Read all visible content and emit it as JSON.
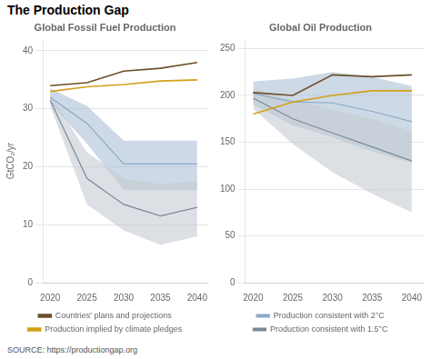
{
  "title": "The Production Gap",
  "annotations": [
    "SOURCE: https://productiongap.org"
  ],
  "chart_data": [
    {
      "type": "line",
      "subtitle": "Global Fossil Fuel Production",
      "ylabel": "GtCO₂/yr",
      "x": [
        2020,
        2025,
        2030,
        2035,
        2040
      ],
      "xlim": [
        2019.0,
        2041.5
      ],
      "xticks": [
        2020,
        2025,
        2030,
        2035,
        2040
      ],
      "ylim": [
        0,
        42
      ],
      "yticks": [
        0,
        10,
        20,
        30,
        40
      ],
      "grid": "y",
      "legend": "bottom",
      "series": [
        {
          "name": "Countries' plans and projections",
          "color": "#6B4F2A",
          "values": [
            34.0,
            34.5,
            36.5,
            37.0,
            38.0
          ]
        },
        {
          "name": "Production implied by climate pledges",
          "color": "#D4A017",
          "values": [
            33.0,
            33.8,
            34.2,
            34.8,
            35.0
          ]
        },
        {
          "color": "#8AAAC8",
          "band_color": "#ABBFD6",
          "values": [
            32.0,
            27.5,
            20.5,
            20.5,
            20.5
          ],
          "upper": [
            33.5,
            30.5,
            24.5,
            24.5,
            24.5
          ],
          "lower": [
            31.0,
            24.0,
            16.0,
            16.0,
            16.0
          ]
        },
        {
          "color": "#7A8A99",
          "band_color": "#C5CBD2",
          "values": [
            31.5,
            18.0,
            13.5,
            11.5,
            13.0
          ],
          "upper": [
            32.5,
            22.5,
            18.0,
            17.0,
            17.5
          ],
          "lower": [
            30.5,
            13.5,
            9.0,
            6.5,
            8.0
          ]
        }
      ]
    },
    {
      "type": "line",
      "subtitle": "Global Oil Production",
      "x": [
        2020,
        2025,
        2030,
        2035,
        2040
      ],
      "xlim": [
        2019.0,
        2041.5
      ],
      "xticks": [
        2020,
        2025,
        2030,
        2035,
        2040
      ],
      "ylim": [
        0,
        260
      ],
      "yticks": [
        0,
        50,
        100,
        150,
        200,
        250
      ],
      "grid": "y",
      "legend": "bottom",
      "series": [
        {
          "color": "#6B4F2A",
          "values": [
            203,
            200,
            222,
            220,
            222
          ]
        },
        {
          "color": "#D4A017",
          "values": [
            180,
            193,
            200,
            205,
            205
          ]
        },
        {
          "name": "Production consistent with 2°C",
          "color": "#8AAAC8",
          "band_color": "#ABBFD6",
          "values": [
            202,
            193,
            192,
            183,
            172
          ],
          "upper": [
            215,
            218,
            225,
            220,
            210
          ],
          "lower": [
            190,
            168,
            155,
            140,
            128
          ]
        },
        {
          "name": "Production consistent with 1.5°C",
          "color": "#7A8A99",
          "band_color": "#C5CBD2",
          "values": [
            197,
            175,
            160,
            145,
            130
          ],
          "upper": [
            207,
            195,
            185,
            175,
            162
          ],
          "lower": [
            186,
            148,
            118,
            95,
            75
          ]
        }
      ]
    }
  ]
}
